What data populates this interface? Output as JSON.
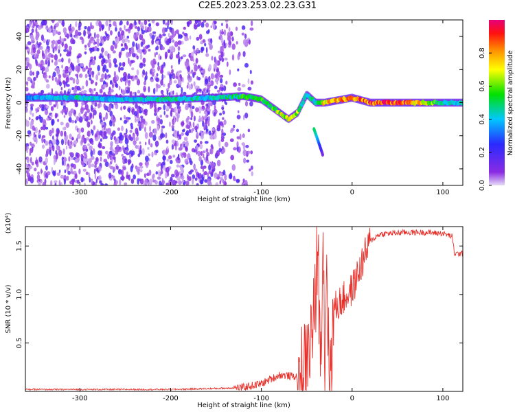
{
  "figure": {
    "title": "C2E5.2023.253.02.23.G31"
  },
  "chart_data": [
    {
      "type": "heatmap",
      "title": "",
      "xlabel": "Height of straight line (km)",
      "ylabel": "Frequency (Hz)",
      "xlim": [
        -360,
        122
      ],
      "ylim": [
        -50,
        50
      ],
      "xticks": [
        -300,
        -200,
        -100,
        0,
        100
      ],
      "yticks": [
        -40,
        -20,
        0,
        20,
        40
      ],
      "colorbar": {
        "label": "Normalized spectral amplitude",
        "range": [
          0,
          1
        ],
        "ticks": [
          "0.0",
          "0.2",
          "0.4",
          "0.6",
          "0.8"
        ],
        "colormap": "rainbow (violet-blue-cyan-green-yellow-orange-red-magenta)"
      },
      "noise_region": {
        "x_from": -360,
        "x_to": -120,
        "amplitude": "low (0.0-0.3)"
      },
      "ridge": [
        {
          "x": -360,
          "f": 3,
          "amp": 0.35
        },
        {
          "x": -300,
          "f": 3,
          "amp": 0.45
        },
        {
          "x": -250,
          "f": 2,
          "amp": 0.4
        },
        {
          "x": -200,
          "f": 2,
          "amp": 0.5
        },
        {
          "x": -150,
          "f": 3,
          "amp": 0.45
        },
        {
          "x": -120,
          "f": 4,
          "amp": 0.55
        },
        {
          "x": -100,
          "f": 2,
          "amp": 0.6
        },
        {
          "x": -90,
          "f": -2,
          "amp": 0.6
        },
        {
          "x": -80,
          "f": -6,
          "amp": 0.7
        },
        {
          "x": -70,
          "f": -10,
          "amp": 0.75
        },
        {
          "x": -60,
          "f": -6,
          "amp": 0.65
        },
        {
          "x": -50,
          "f": 5,
          "amp": 0.4
        },
        {
          "x": -40,
          "f": 0,
          "amp": 0.5
        },
        {
          "x": -30,
          "f": 0,
          "amp": 0.8
        },
        {
          "x": -10,
          "f": 2,
          "amp": 0.85
        },
        {
          "x": 0,
          "f": 3,
          "amp": 0.9
        },
        {
          "x": 20,
          "f": 0,
          "amp": 0.95
        },
        {
          "x": 60,
          "f": 0,
          "amp": 0.95
        },
        {
          "x": 100,
          "f": 0,
          "amp": 0.5
        },
        {
          "x": 122,
          "f": 0,
          "amp": 0.45
        }
      ],
      "branch": [
        {
          "x": -42,
          "f": -16,
          "amp": 0.5
        },
        {
          "x": -40,
          "f": -19,
          "amp": 0.45
        },
        {
          "x": -32,
          "f": -32,
          "amp": 0.1
        }
      ]
    },
    {
      "type": "line",
      "title": "",
      "xlabel": "Height of straight line (km)",
      "ylabel": "SNR (10 * v/v)",
      "y_multiplier": "(x10⁴)",
      "xlim": [
        -360,
        122
      ],
      "ylim": [
        0,
        1.7
      ],
      "xticks": [
        -300,
        -200,
        -100,
        0,
        100
      ],
      "yticks": [
        "0.5",
        "1.0",
        "1.5"
      ],
      "series": [
        {
          "color": "#e8302a",
          "x": [
            -360,
            -300,
            -250,
            -200,
            -150,
            -120,
            -100,
            -80,
            -60,
            -50,
            -40,
            -38,
            -35,
            -32,
            -30,
            -28,
            -25,
            -20,
            -10,
            0,
            10,
            20,
            30,
            40,
            60,
            80,
            100,
            110,
            113,
            116,
            122
          ],
          "y": [
            0.02,
            0.02,
            0.02,
            0.02,
            0.03,
            0.04,
            0.08,
            0.17,
            0.15,
            0.28,
            0.9,
            1.65,
            0.3,
            1.7,
            0.2,
            1.4,
            0.08,
            0.85,
            0.95,
            1.05,
            1.3,
            1.55,
            1.62,
            1.63,
            1.64,
            1.64,
            1.63,
            1.6,
            1.42,
            1.42,
            1.42
          ]
        }
      ]
    }
  ]
}
